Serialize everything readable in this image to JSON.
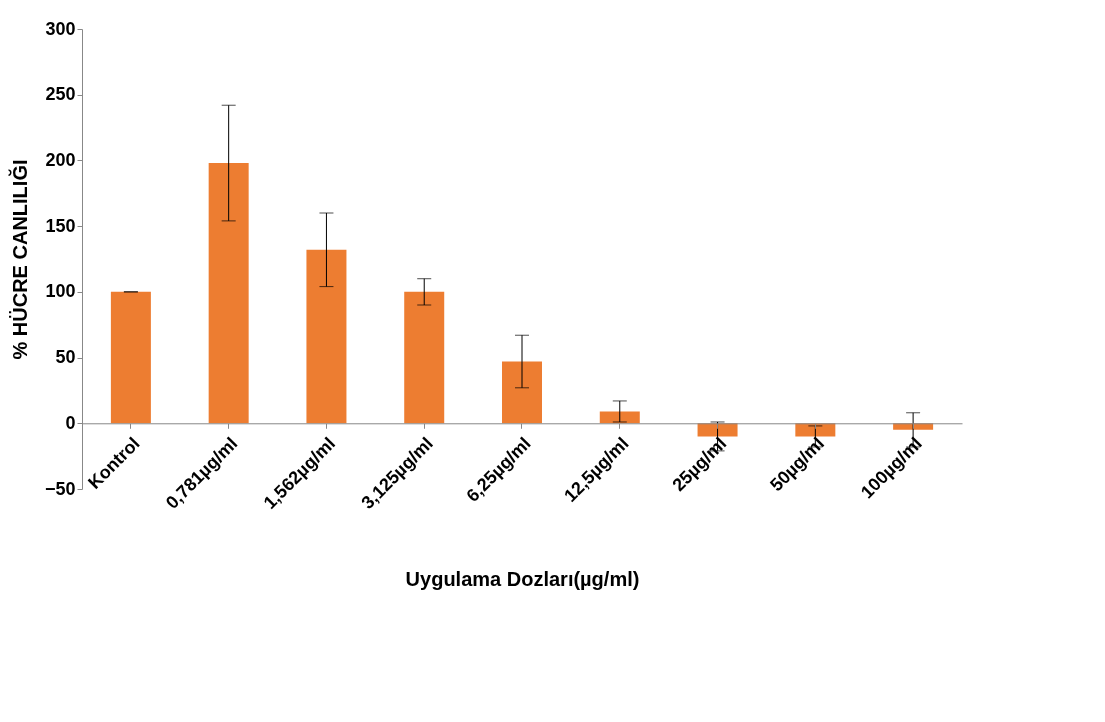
{
  "chart_data": {
    "type": "bar",
    "xlabel": "Uygulama Dozları(µg/ml)",
    "ylabel": "% HÜCRE CANLILIĞI",
    "categories": [
      "Kontrol",
      "0,781µg/ml",
      "1,562µg/ml",
      "3,125µg/ml",
      "6,25µg/ml",
      "12,5µg/ml",
      "25µg/ml",
      "50µg/ml",
      "100µg/ml"
    ],
    "values": [
      100,
      198,
      132,
      100,
      47,
      9,
      -10,
      -10,
      -5
    ],
    "errors": [
      0,
      44,
      28,
      10,
      20,
      8,
      11,
      8,
      13
    ],
    "color": "#ed7d31",
    "ylim": [
      -50,
      300
    ],
    "yticks": [
      -50,
      0,
      50,
      100,
      150,
      200,
      250,
      300
    ],
    "grid": false
  }
}
